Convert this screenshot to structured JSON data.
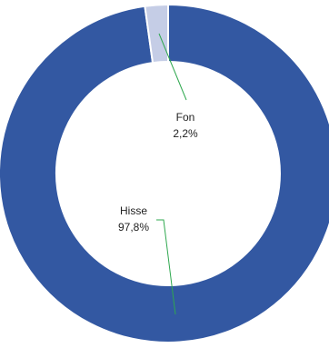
{
  "chart_data": {
    "type": "pie",
    "donut": true,
    "slices": [
      {
        "name": "Hisse",
        "value": 97.8,
        "value_label": "97,8%",
        "color": "#3358a2"
      },
      {
        "name": "Fon",
        "value": 2.2,
        "value_label": "2,2%",
        "color": "#c5cde6"
      }
    ],
    "title": "",
    "legend": "none",
    "leader_line_color": "#2fa84f",
    "start_angle": 0,
    "direction": "clockwise"
  }
}
